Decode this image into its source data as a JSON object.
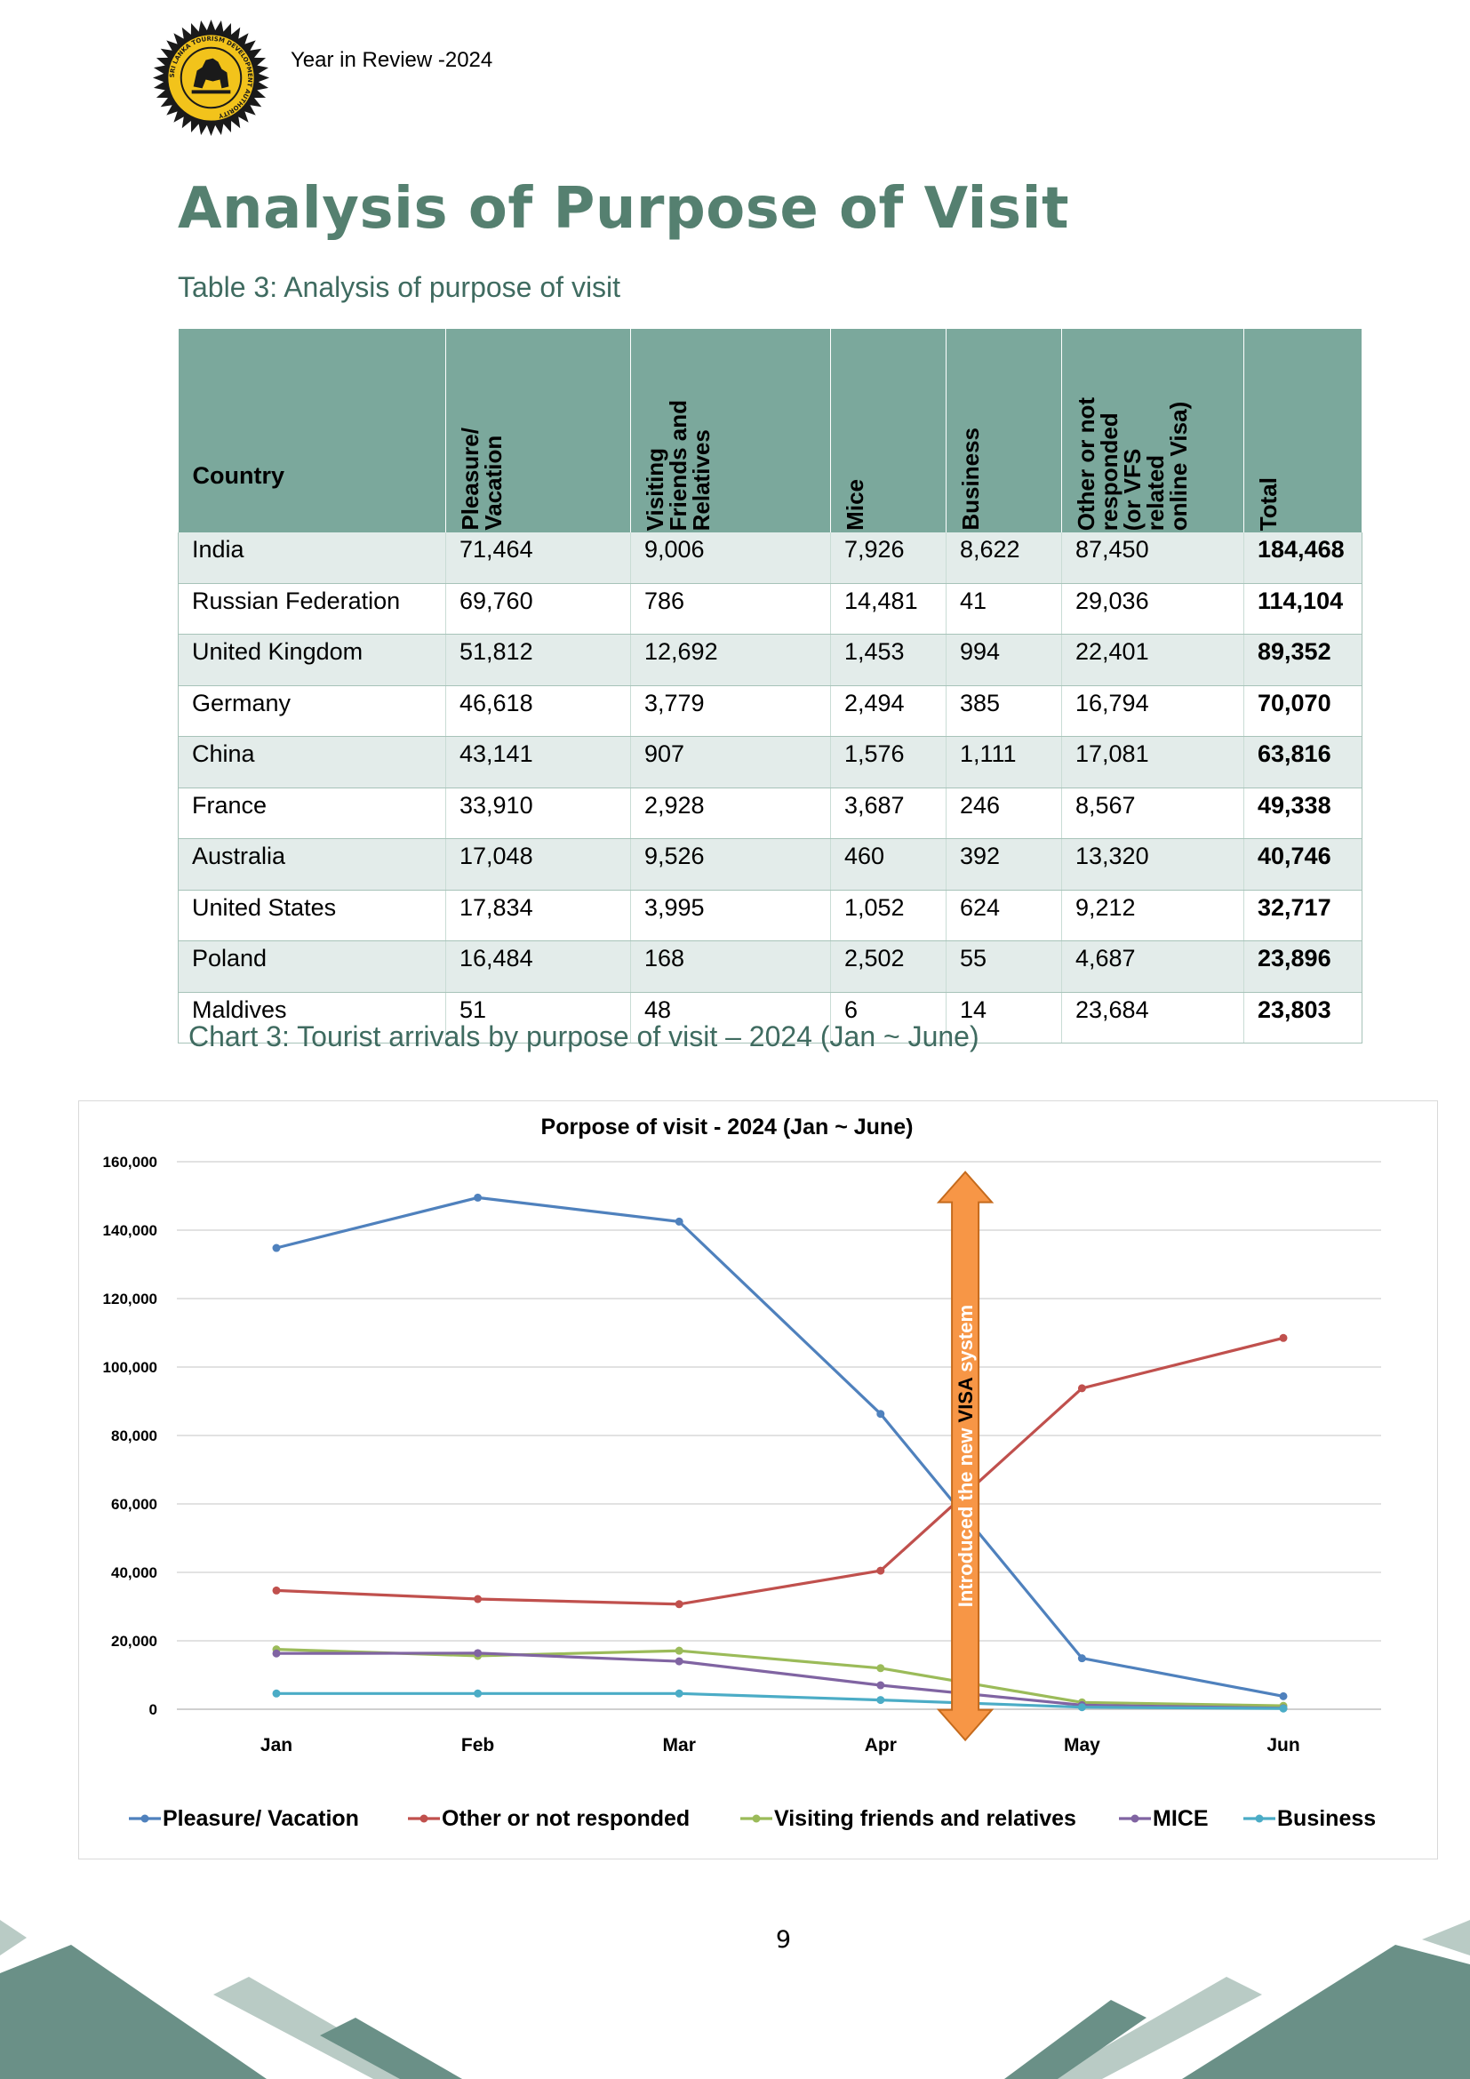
{
  "header": {
    "text": "Year in Review -2024",
    "logo_icon": "sri-lanka-tourism-seal-icon",
    "logo_text": "SRI LANKA TOURISM DEVELOPMENT AUTHORITY"
  },
  "title": "Analysis of Purpose of Visit",
  "table_caption": "Table 3: Analysis of purpose of visit",
  "table": {
    "columns": [
      "Country",
      "Pleasure/\nVacation",
      "Visiting\nFriends and\nRelatives",
      "Mice",
      "Business",
      "Other or not\nresponded\n(or VFS\nrelated\nonline Visa)",
      "Total"
    ],
    "rows": [
      [
        "India",
        "71,464",
        "9,006",
        "7,926",
        "8,622",
        "87,450",
        "184,468"
      ],
      [
        "Russian Federation",
        "69,760",
        "786",
        "14,481",
        "41",
        "29,036",
        "114,104"
      ],
      [
        "United Kingdom",
        "51,812",
        "12,692",
        "1,453",
        "994",
        "22,401",
        "89,352"
      ],
      [
        "Germany",
        "46,618",
        "3,779",
        "2,494",
        "385",
        "16,794",
        "70,070"
      ],
      [
        "China",
        "43,141",
        "907",
        "1,576",
        "1,111",
        "17,081",
        "63,816"
      ],
      [
        "France",
        "33,910",
        "2,928",
        "3,687",
        "246",
        "8,567",
        "49,338"
      ],
      [
        "Australia",
        "17,048",
        "9,526",
        "460",
        "392",
        "13,320",
        "40,746"
      ],
      [
        "United States",
        "17,834",
        "3,995",
        "1,052",
        "624",
        "9,212",
        "32,717"
      ],
      [
        "Poland",
        "16,484",
        "168",
        "2,502",
        "55",
        "4,687",
        "23,896"
      ],
      [
        "Maldives",
        "51",
        "48",
        "6",
        "14",
        "23,684",
        "23,803"
      ]
    ]
  },
  "chart_caption": "Chart 3: Tourist arrivals by purpose of visit – 2024 (Jan ~ June)",
  "chart_data": {
    "type": "line",
    "title": "Porpose of visit - 2024 (Jan ~ June)",
    "categories": [
      "Jan",
      "Feb",
      "Mar",
      "Apr",
      "May",
      "Jun"
    ],
    "ylim": [
      0,
      160000
    ],
    "yticks": [
      0,
      20000,
      40000,
      60000,
      80000,
      100000,
      120000,
      140000,
      160000
    ],
    "ytick_labels": [
      "0",
      "20,000",
      "40,000",
      "60,000",
      "80,000",
      "100,000",
      "120,000",
      "140,000",
      "160,000"
    ],
    "grid": true,
    "legend_position": "bottom",
    "series": [
      {
        "name": "Pleasure/ Vacation",
        "color": "#4f81bd",
        "values": [
          134800,
          149500,
          142500,
          86300,
          14900,
          3800
        ]
      },
      {
        "name": "Other or not responded",
        "color": "#c0504d",
        "values": [
          34700,
          32200,
          30700,
          40500,
          93800,
          108500
        ]
      },
      {
        "name": "Visiting friends and relatives",
        "color": "#9bbb59",
        "values": [
          17500,
          15600,
          17100,
          12000,
          2000,
          1000
        ]
      },
      {
        "name": "MICE",
        "color": "#8064a2",
        "values": [
          16300,
          16400,
          14000,
          7000,
          1200,
          300
        ]
      },
      {
        "name": "Business",
        "color": "#4bacc6",
        "values": [
          4600,
          4600,
          4600,
          2700,
          600,
          200
        ]
      }
    ],
    "annotation": {
      "text_pre": "Introduced the new ",
      "text_bold": "VISA",
      "text_post": " system",
      "position_between": [
        "Apr",
        "May"
      ],
      "arrow_color": "#f79646"
    }
  },
  "page_number": "9"
}
